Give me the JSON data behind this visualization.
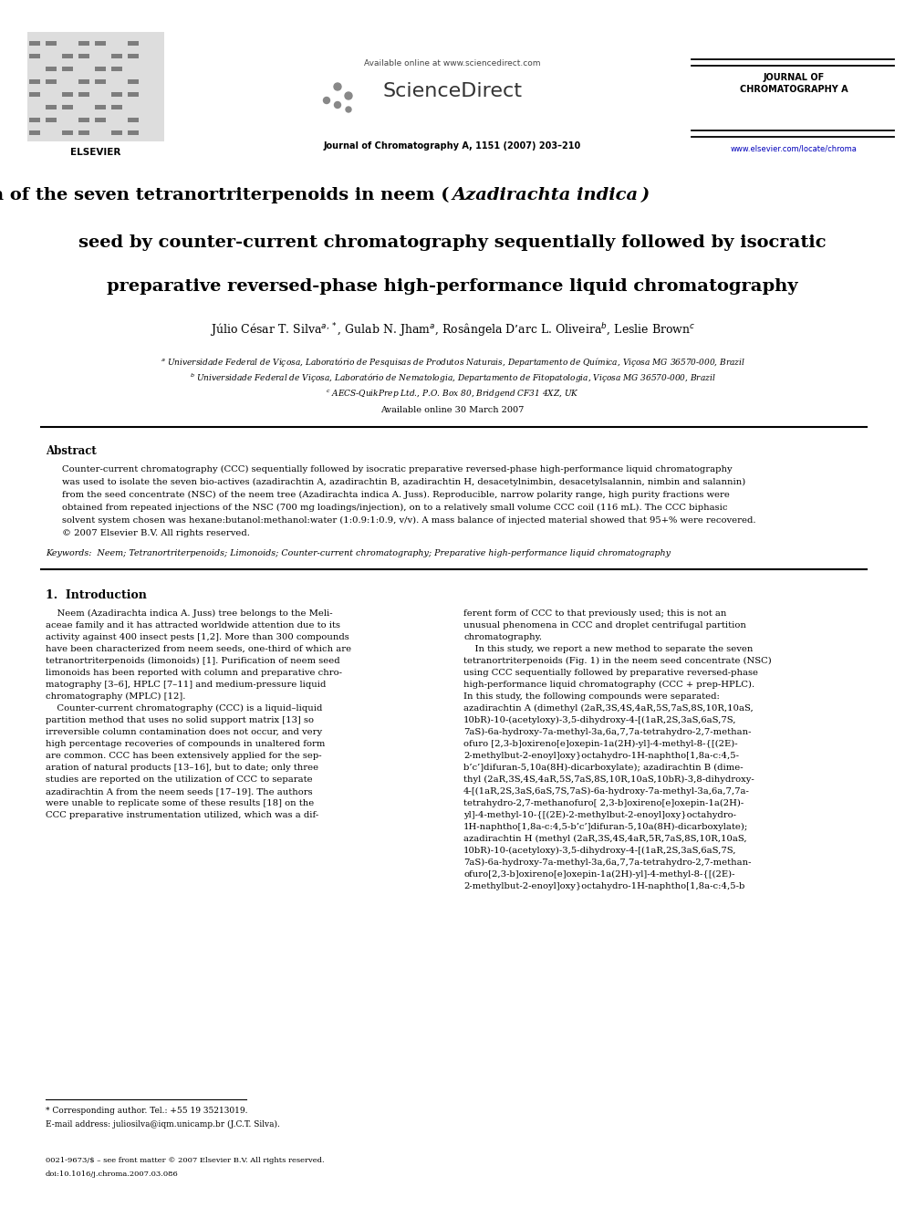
{
  "page_width": 9.92,
  "page_height": 13.23,
  "bg_color": "#ffffff",
  "available_online_header": "Available online at www.sciencedirect.com",
  "sciencedirect_text": "ScienceDirect",
  "journal_line": "Journal of Chromatography A, 1151 (2007) 203–210",
  "journal_name_right": "JOURNAL OF\nCHROMATOGRAPHY A",
  "website_right": "www.elsevier.com/locate/chroma",
  "elsevier_text": "ELSEVIER",
  "title_line1_normal": "Purification of the seven tetranortriterpenoids in neem (",
  "title_line1_italic": "Azadirachta indica",
  "title_line1_end": ")",
  "title_line2": "seed by counter-current chromatography sequentially followed by isocratic",
  "title_line3": "preparative reversed-phase high-performance liquid chromatography",
  "author_line": "Júlio César T. Silva$^{a,*}$, Gulab N. Jham$^{a}$, Rosângela D’arc L. Oliveira$^{b}$, Leslie Brown$^{c}$",
  "affil_a": "$^{a}$ Universidade Federal de Viçosa, Laboratório de Pesquisas de Produtos Naturais, Departamento de Química, Viçosa MG 36570-000, Brazil",
  "affil_b": "$^{b}$ Universidade Federal de Viçosa, Laboratório de Nematologia, Departamento de Fitopatologia, Viçosa MG 36570-000, Brazil",
  "affil_c": "$^{c}$ AECS-QuikPrep Ltd., P.O. Box 80, Bridgend CF31 4XZ, UK",
  "available_online_date": "Available online 30 March 2007",
  "abstract_title": "Abstract",
  "abstract_lines": [
    "Counter-current chromatography (CCC) sequentially followed by isocratic preparative reversed-phase high-performance liquid chromatography",
    "was used to isolate the seven bio-actives (azadirachtin A, azadirachtin B, azadirachtin H, desacetylnimbin, desacetylsalannin, nimbin and salannin)",
    "from the seed concentrate (NSC) of the neem tree (Azadirachta indica A. Juss). Reproducible, narrow polarity range, high purity fractions were",
    "obtained from repeated injections of the NSC (700 mg loadings/injection), on to a relatively small volume CCC coil (116 mL). The CCC biphasic",
    "solvent system chosen was hexane:butanol:methanol:water (1:0.9:1:0.9, v/v). A mass balance of injected material showed that 95+% were recovered.",
    "© 2007 Elsevier B.V. All rights reserved."
  ],
  "keywords_line": "Keywords:  Neem; Tetranortriterpenoids; Limonoids; Counter-current chromatography; Preparative high-performance liquid chromatography",
  "intro_title": "1.  Introduction",
  "col1_lines": [
    "    Neem (Azadirachta indica A. Juss) tree belongs to the Meli-",
    "aceae family and it has attracted worldwide attention due to its",
    "activity against 400 insect pests [1,2]. More than 300 compounds",
    "have been characterized from neem seeds, one-third of which are",
    "tetranortriterpenoids (limonoids) [1]. Purification of neem seed",
    "limonoids has been reported with column and preparative chro-",
    "matography [3–6], HPLC [7–11] and medium-pressure liquid",
    "chromatography (MPLC) [12].",
    "    Counter-current chromatography (CCC) is a liquid–liquid",
    "partition method that uses no solid support matrix [13] so",
    "irreversible column contamination does not occur, and very",
    "high percentage recoveries of compounds in unaltered form",
    "are common. CCC has been extensively applied for the sep-",
    "aration of natural products [13–16], but to date; only three",
    "studies are reported on the utilization of CCC to separate",
    "azadirachtin A from the neem seeds [17–19]. The authors",
    "were unable to replicate some of these results [18] on the",
    "CCC preparative instrumentation utilized, which was a dif-"
  ],
  "col2_lines": [
    "ferent form of CCC to that previously used; this is not an",
    "unusual phenomena in CCC and droplet centrifugal partition",
    "chromatography.",
    "    In this study, we report a new method to separate the seven",
    "tetranortriterpenoids (Fig. 1) in the neem seed concentrate (NSC)",
    "using CCC sequentially followed by preparative reversed-phase",
    "high-performance liquid chromatography (CCC + prep-HPLC).",
    "In this study, the following compounds were separated:",
    "azadirachtin A (dimethyl (2aR,3S,4S,4aR,5S,7aS,8S,10R,10aS,",
    "10bR)-10-(acetyloxy)-3,5-dihydroxy-4-[(1aR,2S,3aS,6aS,7S,",
    "7aS)-6a-hydroxy-7a-methyl-3a,6a,7,7a-tetrahydro-2,7-methan-",
    "ofuro [2,3-b]oxireno[e]oxepin-1a(2H)-yl]-4-methyl-8-{[(2E)-",
    "2-methylbut-2-enoyl]oxy}octahydro-1H-naphtho[1,8a-c:4,5-",
    "b’c’]difuran-5,10a(8H)-dicarboxylate); azadirachtin B (dime-",
    "thyl (2aR,3S,4S,4aR,5S,7aS,8S,10R,10aS,10bR)-3,8-dihydroxy-",
    "4-[(1aR,2S,3aS,6aS,7S,7aS)-6a-hydroxy-7a-methyl-3a,6a,7,7a-",
    "tetrahydro-2,7-methanofuro[ 2,3-b]oxireno[e]oxepin-1a(2H)-",
    "yl]-4-methyl-10-{[(2E)-2-methylbut-2-enoyl]oxy}octahydro-",
    "1H-naphtho[1,8a-c:4,5-b’c’]difuran-5,10a(8H)-dicarboxylate);",
    "azadirachtin H (methyl (2aR,3S,4S,4aR,5R,7aS,8S,10R,10aS,",
    "10bR)-10-(acetyloxy)-3,5-dihydroxy-4-[(1aR,2S,3aS,6aS,7S,",
    "7aS)-6a-hydroxy-7a-methyl-3a,6a,7,7a-tetrahydro-2,7-methan-",
    "ofuro[2,3-b]oxireno[e]oxepin-1a(2H)-yl]-4-methyl-8-{[(2E)-",
    "2-methylbut-2-enoyl]oxy}octahydro-1H-naphtho[1,8a-c:4,5-b"
  ],
  "footnote1": "* Corresponding author. Tel.: +55 19 35213019.",
  "footnote2": "E-mail address: juliosilva@iqm.unicamp.br (J.C.T. Silva).",
  "footer1": "0021-9673/$ – see front matter © 2007 Elsevier B.V. All rights reserved.",
  "footer2": "doi:10.1016/j.chroma.2007.03.086",
  "link_color": "#0000bb",
  "text_color": "#000000"
}
